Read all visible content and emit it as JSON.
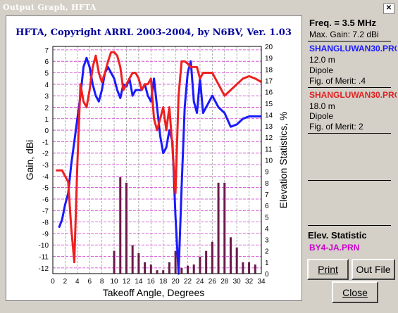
{
  "window": {
    "title": "Output Graph, HFTA"
  },
  "graph": {
    "header": "HFTA, Copyright ARRL 2003-2004, by N6BV, Ver. 1.03",
    "y_left_label": "Gain, dBi",
    "y_right_label": "Elevation Statistics, %",
    "x_label": "Takeoff Angle, Degrees"
  },
  "panel": {
    "freq": "Freq. = 3.5 MHz",
    "max_gain": "Max. Gain: 7.2 dBi",
    "ant1": {
      "name": "SHANGLUWAN30.PRO",
      "height": "12.0 m",
      "type": "Dipole",
      "fom": "Fig. of Merit: .4"
    },
    "ant2": {
      "name": "SHANGLUWAN30.PRO",
      "height": "18.0 m",
      "type": "Dipole",
      "fom": "Fig. of Merit: 2"
    },
    "elev_title": "Elev. Statistic",
    "elev_file": "BY4-JA.PRN"
  },
  "buttons": {
    "print": "Print",
    "outfile": "Out File",
    "close": "Close"
  },
  "colors": {
    "ant1": "#1a1aff",
    "ant2": "#ee2020",
    "bars": "#6a1a4a",
    "elev_file": "#cc00cc",
    "title_fg": "#ffffff",
    "header": "#000099"
  },
  "chart_data": {
    "type": "line",
    "x_ticks": [
      0,
      2,
      4,
      6,
      8,
      10,
      12,
      14,
      16,
      18,
      20,
      22,
      24,
      26,
      28,
      30,
      32,
      34
    ],
    "y_left_ticks": [
      7,
      6,
      5,
      4,
      3,
      2,
      1,
      0,
      -1,
      -2,
      -3,
      -4,
      -5,
      -6,
      -7,
      -8,
      -9,
      -10,
      -11,
      -12
    ],
    "y_right_ticks": [
      20,
      19,
      18,
      17,
      16,
      15,
      14,
      13,
      12,
      11,
      10,
      9,
      8,
      7,
      6,
      5,
      4,
      3,
      2,
      1,
      0
    ],
    "xlim": [
      0,
      34
    ],
    "ylim_left": [
      -12.5,
      7.3
    ],
    "ylim_right": [
      0,
      20
    ],
    "grid": true,
    "series": [
      {
        "name": "SHANGLUWAN30.PRO",
        "x": [
          1,
          1.5,
          2,
          2.5,
          3,
          3.5,
          4,
          4.5,
          5,
          5.5,
          6,
          6.5,
          7,
          7.5,
          8,
          8.5,
          9,
          9.5,
          10,
          10.5,
          11,
          11.5,
          12,
          12.5,
          13,
          13.5,
          14,
          14.5,
          15,
          15.5,
          16,
          16.5,
          17,
          17.5,
          18,
          18.5,
          19,
          19.5,
          20,
          20.5,
          21,
          21.5,
          22,
          22.5,
          23,
          23.5,
          24,
          24.5,
          25,
          26,
          27,
          28,
          29,
          30,
          31,
          32,
          33,
          34
        ],
        "y": [
          -8.5,
          -7.8,
          -6.5,
          -5.5,
          -3,
          -1,
          1,
          3,
          5.5,
          6.3,
          5.5,
          4,
          3,
          2.5,
          3.5,
          5,
          5.5,
          5,
          4.5,
          3.5,
          2.8,
          4,
          3.8,
          4.5,
          3,
          3.5,
          3.5,
          3.5,
          4,
          3,
          2.5,
          4.5,
          2,
          -0.5,
          -2,
          -1.5,
          0,
          -1,
          -7.5,
          -12.5,
          -5,
          2,
          5,
          6,
          2.5,
          1.5,
          4.5,
          1.5,
          2,
          3,
          2,
          1.5,
          0.3,
          0.5,
          1,
          1.2,
          1.2,
          1.2
        ]
      },
      {
        "name": "SHANGLUWAN30.PRO",
        "x": [
          0.5,
          1,
          1.5,
          2,
          2.5,
          3,
          3.5,
          4,
          4.5,
          5,
          5.5,
          6,
          6.5,
          7,
          7.5,
          8,
          8.5,
          9,
          9.5,
          10,
          10.5,
          11,
          11.5,
          12,
          12.5,
          13,
          13.5,
          14,
          14.5,
          15,
          15.5,
          16,
          16.5,
          17,
          17.5,
          18,
          18.5,
          19,
          19.5,
          20,
          20.5,
          21,
          21.5,
          22,
          22.5,
          23,
          23.5,
          24,
          24.5,
          25,
          26,
          27,
          28,
          29,
          30,
          31,
          32,
          33,
          34
        ],
        "y": [
          -3.5,
          -3.5,
          -3.5,
          -4,
          -4.5,
          -8.5,
          -11.5,
          -3,
          4,
          2.5,
          2,
          3.5,
          5.5,
          6.5,
          5,
          4.2,
          5,
          6,
          6.8,
          6.8,
          6.5,
          5.5,
          3.5,
          4,
          4.5,
          5,
          5,
          4.5,
          3.5,
          4,
          4,
          4.5,
          1,
          0,
          1,
          2,
          0,
          2,
          -1.5,
          -5.5,
          3,
          6,
          6,
          5.8,
          5.5,
          5.5,
          5.5,
          4.5,
          5,
          5,
          5,
          4,
          3,
          3.5,
          4,
          4.5,
          4.7,
          4.5,
          4.2
        ]
      }
    ],
    "bars": {
      "name": "BY4-JA.PRN",
      "x": [
        10,
        11,
        12,
        13,
        14,
        15,
        16,
        17,
        18,
        19,
        20,
        21,
        22,
        23,
        24,
        25,
        26,
        27,
        28,
        29,
        30,
        31,
        32,
        33
      ],
      "values": [
        2,
        8.5,
        8,
        2.5,
        1.8,
        1,
        0.8,
        0.3,
        0.3,
        1,
        2,
        0.5,
        0.7,
        0.8,
        1.5,
        2,
        2.8,
        8,
        8,
        3.2,
        2.3,
        1,
        1,
        0.8
      ]
    }
  }
}
